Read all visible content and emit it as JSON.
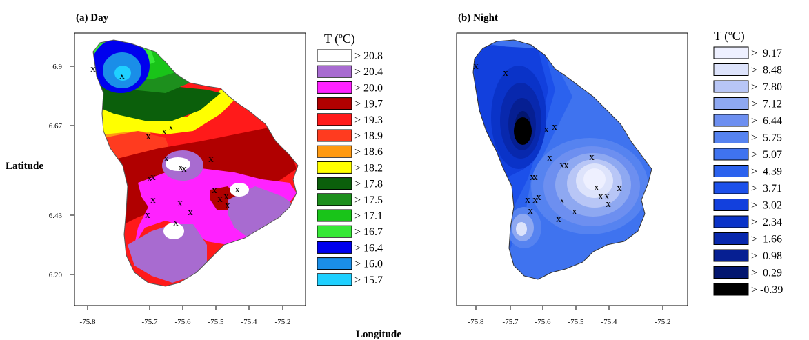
{
  "x_axis_label": "Longitude",
  "y_axis_label": "Latitude",
  "x_ticks": [
    "-75.8",
    "-75.7",
    "-75.6",
    "-75.5",
    "-75.4",
    "-75.2"
  ],
  "y_ticks": [
    "6.9",
    "6.67",
    "6.43",
    "6.20"
  ],
  "panels": [
    {
      "id": "day",
      "title": "(a) Day",
      "legend_title": "T (ºC)",
      "legend": [
        {
          "label": "> 20.8",
          "color": "#ffffff"
        },
        {
          "label": "> 20.4",
          "color": "#a86bd0"
        },
        {
          "label": "> 20.0",
          "color": "#ff22ff"
        },
        {
          "label": "> 19.7",
          "color": "#b00000"
        },
        {
          "label": "> 19.3",
          "color": "#ff1a1a"
        },
        {
          "label": "> 18.9",
          "color": "#ff3b1f"
        },
        {
          "label": "> 18.6",
          "color": "#ff9a12"
        },
        {
          "label": "> 18.2",
          "color": "#ffff00"
        },
        {
          "label": "> 17.8",
          "color": "#0b5f0b"
        },
        {
          "label": "> 17.5",
          "color": "#1d8f1d"
        },
        {
          "label": "> 17.1",
          "color": "#19c419"
        },
        {
          "label": "> 16.7",
          "color": "#37e837"
        },
        {
          "label": "> 16.4",
          "color": "#0000ee"
        },
        {
          "label": "> 16.0",
          "color": "#1a8ee8"
        },
        {
          "label": "> 15.7",
          "color": "#1fd0ff"
        }
      ]
    },
    {
      "id": "night",
      "title": "(b) Night",
      "legend_title": "T (ºC)",
      "legend": [
        {
          "label": ">  9.17",
          "color": "#eef0ff"
        },
        {
          "label": ">  8.48",
          "color": "#dde3fb"
        },
        {
          "label": ">  7.80",
          "color": "#b8c6f6"
        },
        {
          "label": ">  7.12",
          "color": "#8ea8f1"
        },
        {
          "label": ">  6.44",
          "color": "#6d8ff0"
        },
        {
          "label": ">  5.75",
          "color": "#5683f0"
        },
        {
          "label": ">  5.07",
          "color": "#3f73ef"
        },
        {
          "label": ">  4.39",
          "color": "#2b62ee"
        },
        {
          "label": ">  3.71",
          "color": "#1c50ea"
        },
        {
          "label": ">  3.02",
          "color": "#1240dd"
        },
        {
          "label": ">  2.34",
          "color": "#0a33c8"
        },
        {
          "label": ">  1.66",
          "color": "#0828ad"
        },
        {
          "label": ">  0.98",
          "color": "#061f92"
        },
        {
          "label": ">  0.29",
          "color": "#03166f"
        },
        {
          "label": "> -0.39",
          "color": "#000000"
        }
      ]
    }
  ],
  "station_marker": "x"
}
